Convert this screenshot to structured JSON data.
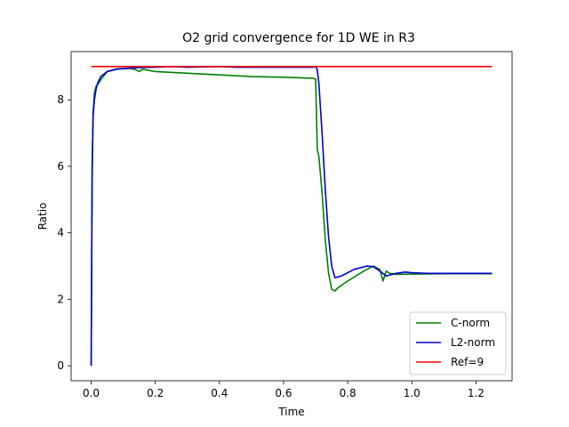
{
  "chart_data": {
    "type": "line",
    "title": "O2 grid convergence for 1D WE in R3",
    "xlabel": "Time",
    "ylabel": "Ratio",
    "xlim": [
      -0.0625,
      1.3125
    ],
    "ylim": [
      -0.45,
      9.45
    ],
    "xticks": [
      0.0,
      0.2,
      0.4,
      0.6,
      0.8,
      1.0,
      1.2
    ],
    "xtick_labels": [
      "0.0",
      "0.2",
      "0.4",
      "0.6",
      "0.8",
      "1.0",
      "1.2"
    ],
    "yticks": [
      0,
      2,
      4,
      6,
      8
    ],
    "ytick_labels": [
      "0",
      "2",
      "4",
      "6",
      "8"
    ],
    "grid": false,
    "legend_position": "lower-right",
    "series": [
      {
        "name": "C-norm",
        "color": "#008000",
        "x": [
          0.0,
          0.003,
          0.006,
          0.01,
          0.015,
          0.02,
          0.03,
          0.05,
          0.08,
          0.12,
          0.14,
          0.15,
          0.16,
          0.2,
          0.3,
          0.4,
          0.5,
          0.6,
          0.69,
          0.7,
          0.705,
          0.71,
          0.72,
          0.73,
          0.74,
          0.75,
          0.76,
          0.77,
          0.8,
          0.85,
          0.88,
          0.9,
          0.91,
          0.92,
          0.93,
          0.95,
          1.0,
          1.1,
          1.2,
          1.25
        ],
        "y": [
          0.0,
          5.5,
          7.6,
          8.2,
          8.4,
          8.45,
          8.6,
          8.85,
          8.92,
          8.95,
          8.9,
          8.85,
          8.92,
          8.85,
          8.8,
          8.75,
          8.7,
          8.68,
          8.65,
          8.62,
          6.5,
          6.3,
          5.2,
          3.8,
          2.8,
          2.3,
          2.25,
          2.35,
          2.55,
          2.85,
          3.0,
          2.9,
          2.55,
          2.85,
          2.78,
          2.75,
          2.76,
          2.77,
          2.77,
          2.77
        ]
      },
      {
        "name": "L2-norm",
        "color": "#0000cc",
        "x": [
          0.0,
          0.003,
          0.006,
          0.01,
          0.015,
          0.02,
          0.03,
          0.05,
          0.08,
          0.12,
          0.15,
          0.2,
          0.25,
          0.3,
          0.35,
          0.4,
          0.45,
          0.5,
          0.6,
          0.69,
          0.7,
          0.705,
          0.71,
          0.72,
          0.73,
          0.74,
          0.75,
          0.76,
          0.78,
          0.82,
          0.86,
          0.88,
          0.9,
          0.92,
          0.95,
          0.98,
          1.0,
          1.05,
          1.1,
          1.2,
          1.25
        ],
        "y": [
          0.0,
          6.0,
          7.5,
          8.0,
          8.3,
          8.5,
          8.7,
          8.85,
          8.93,
          8.95,
          8.97,
          8.98,
          9.0,
          8.98,
          8.99,
          9.0,
          8.98,
          8.98,
          8.98,
          8.98,
          9.0,
          8.9,
          8.5,
          7.0,
          5.3,
          3.9,
          3.0,
          2.65,
          2.7,
          2.9,
          3.0,
          2.98,
          2.85,
          2.7,
          2.78,
          2.82,
          2.8,
          2.78,
          2.78,
          2.78,
          2.78
        ]
      },
      {
        "name": "Ref=9",
        "color": "#ff0000",
        "x": [
          0.0,
          1.25
        ],
        "y": [
          9.0,
          9.0
        ]
      }
    ]
  }
}
